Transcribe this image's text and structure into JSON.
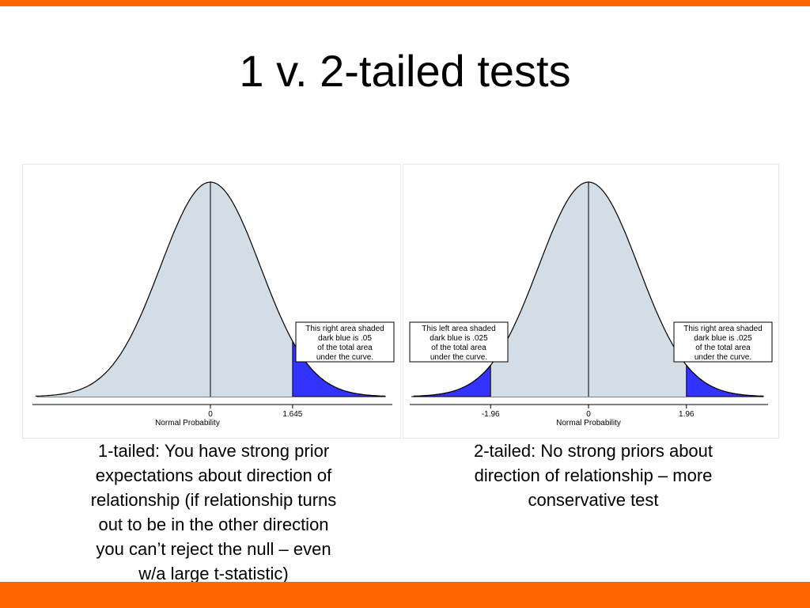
{
  "slide": {
    "title": "1 v. 2-tailed tests",
    "colors": {
      "accent_bar": "#ff6600",
      "curve_fill": "#d2dde6",
      "tail_fill": "#3333ff"
    }
  },
  "chart_data": [
    {
      "type": "area",
      "distribution": "standard normal",
      "xlim": [
        -3.5,
        3.5
      ],
      "ticks": [
        {
          "value": 0,
          "label": "0"
        },
        {
          "value": 1.645,
          "label": "1.645"
        }
      ],
      "xlabel": "Normal Probability",
      "shaded_tails": [
        {
          "side": "right",
          "from": 1.645,
          "area": 0.05
        }
      ],
      "annotations": [
        {
          "attached_to": "right",
          "lines": [
            "This right area shaded",
            "dark blue is .05",
            "of the total area",
            "under the curve."
          ]
        }
      ],
      "caption": [
        "1-tailed: You have strong prior",
        "expectations about direction of",
        "relationship (if relationship turns",
        "out to be in the other direction",
        "you can’t reject the null – even",
        "w/a large t-statistic)"
      ]
    },
    {
      "type": "area",
      "distribution": "standard normal",
      "xlim": [
        -3.5,
        3.5
      ],
      "ticks": [
        {
          "value": -1.96,
          "label": "-1.96"
        },
        {
          "value": 0,
          "label": "0"
        },
        {
          "value": 1.96,
          "label": "1.96"
        }
      ],
      "xlabel": "Normal Probability",
      "shaded_tails": [
        {
          "side": "left",
          "to": -1.96,
          "area": 0.025
        },
        {
          "side": "right",
          "from": 1.96,
          "area": 0.025
        }
      ],
      "annotations": [
        {
          "attached_to": "left",
          "lines": [
            "This left area shaded",
            "dark blue is .025",
            "of the total area",
            "under the curve."
          ]
        },
        {
          "attached_to": "right",
          "lines": [
            "This right area shaded",
            "dark blue is .025",
            "of the total area",
            "under the curve."
          ]
        }
      ],
      "caption": [
        "2-tailed: No strong priors about",
        "direction of relationship – more",
        "conservative test"
      ]
    }
  ]
}
